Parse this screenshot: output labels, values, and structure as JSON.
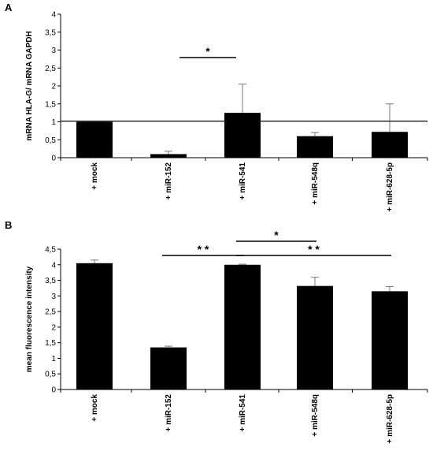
{
  "chart_data": [
    {
      "panel": "A",
      "type": "bar",
      "ylabel": "mRNA HLA-G/ mRNA GAPDH",
      "ylim": [
        0,
        4
      ],
      "yticks": [
        "0",
        "0,5",
        "1",
        "1,5",
        "2",
        "2,5",
        "3",
        "3,5",
        "4"
      ],
      "categories": [
        "+ mock",
        "+ miR-152",
        "+ miR-541",
        "+ miR-548q",
        "+ miR-628-5p"
      ],
      "values": [
        1.0,
        0.1,
        1.25,
        0.6,
        0.72
      ],
      "errors": [
        0.0,
        0.08,
        0.8,
        0.1,
        0.78
      ],
      "reference_line": 1.02,
      "significance": [
        {
          "from": "+ miR-152",
          "to": "+ miR-541",
          "label": "*"
        }
      ]
    },
    {
      "panel": "B",
      "type": "bar",
      "ylabel": "mean fluorescence intensity",
      "ylim": [
        0,
        4.5
      ],
      "yticks": [
        "0",
        "0,5",
        "1",
        "1,5",
        "2",
        "2,5",
        "3",
        "3,5",
        "4",
        "4,5"
      ],
      "categories": [
        "+ mock",
        "+ miR-152",
        "+ miR-541",
        "+ miR-548q",
        "+ miR-628-5p"
      ],
      "values": [
        4.05,
        1.35,
        4.0,
        3.32,
        3.15
      ],
      "errors": [
        0.1,
        0.04,
        0.02,
        0.28,
        0.15
      ],
      "significance": [
        {
          "from": "+ miR-152",
          "to": "+ miR-541",
          "label": "* *"
        },
        {
          "from": "+ miR-541",
          "to": "+ miR-548q",
          "label": "*"
        },
        {
          "from": "+ miR-541",
          "to": "+ miR-628-5p",
          "label": "* *"
        }
      ]
    }
  ]
}
